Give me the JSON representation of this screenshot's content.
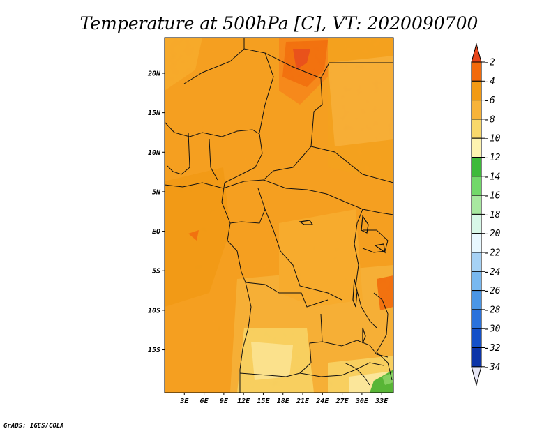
{
  "chart_data": {
    "type": "heatmap",
    "title": "Temperature at 500hPa [C], VT: 2020090700",
    "variable": "Temperature at 500hPa",
    "units": "C",
    "valid_time": "2020090700",
    "x_ticks": [
      "3E",
      "6E",
      "9E",
      "12E",
      "15E",
      "18E",
      "21E",
      "24E",
      "27E",
      "30E",
      "33E"
    ],
    "y_ticks": [
      "20N",
      "15N",
      "10N",
      "5N",
      "EQ",
      "5S",
      "10S",
      "15S"
    ],
    "xlim": [
      0,
      35
    ],
    "ylim": [
      -20,
      24.5
    ],
    "colorbar": {
      "levels": [
        "-2",
        "-4",
        "-6",
        "-8",
        "-10",
        "-12",
        "-14",
        "-16",
        "-18",
        "-20",
        "-22",
        "-24",
        "-26",
        "-28",
        "-30",
        "-32",
        "-34"
      ],
      "colors": [
        "#e8451a",
        "#f26a0c",
        "#f29a14",
        "#f7b33a",
        "#f9d86b",
        "#fdf3b0",
        "#3dba3a",
        "#72d86a",
        "#a8e8a0",
        "#d8f8e8",
        "#e8f8ff",
        "#a6d2f5",
        "#78b8f0",
        "#4a96e6",
        "#2a72dc",
        "#1450c8",
        "#0c34a8",
        "#0a1a6e"
      ],
      "over_color": "#e8451a",
      "under_color": "#e6e6f5"
    },
    "field_description": "Mostly -4 to -8 C over Central Africa; warmer (-2 to -4) in the north near 20-23N, 14-20E; colder (-10 to -14) in the south-east near 15-20S, 25-35E"
  },
  "footer": {
    "credit": "GrADS: IGES/COLA"
  },
  "colors": {
    "background": "#ffffff",
    "border": "#000000"
  }
}
